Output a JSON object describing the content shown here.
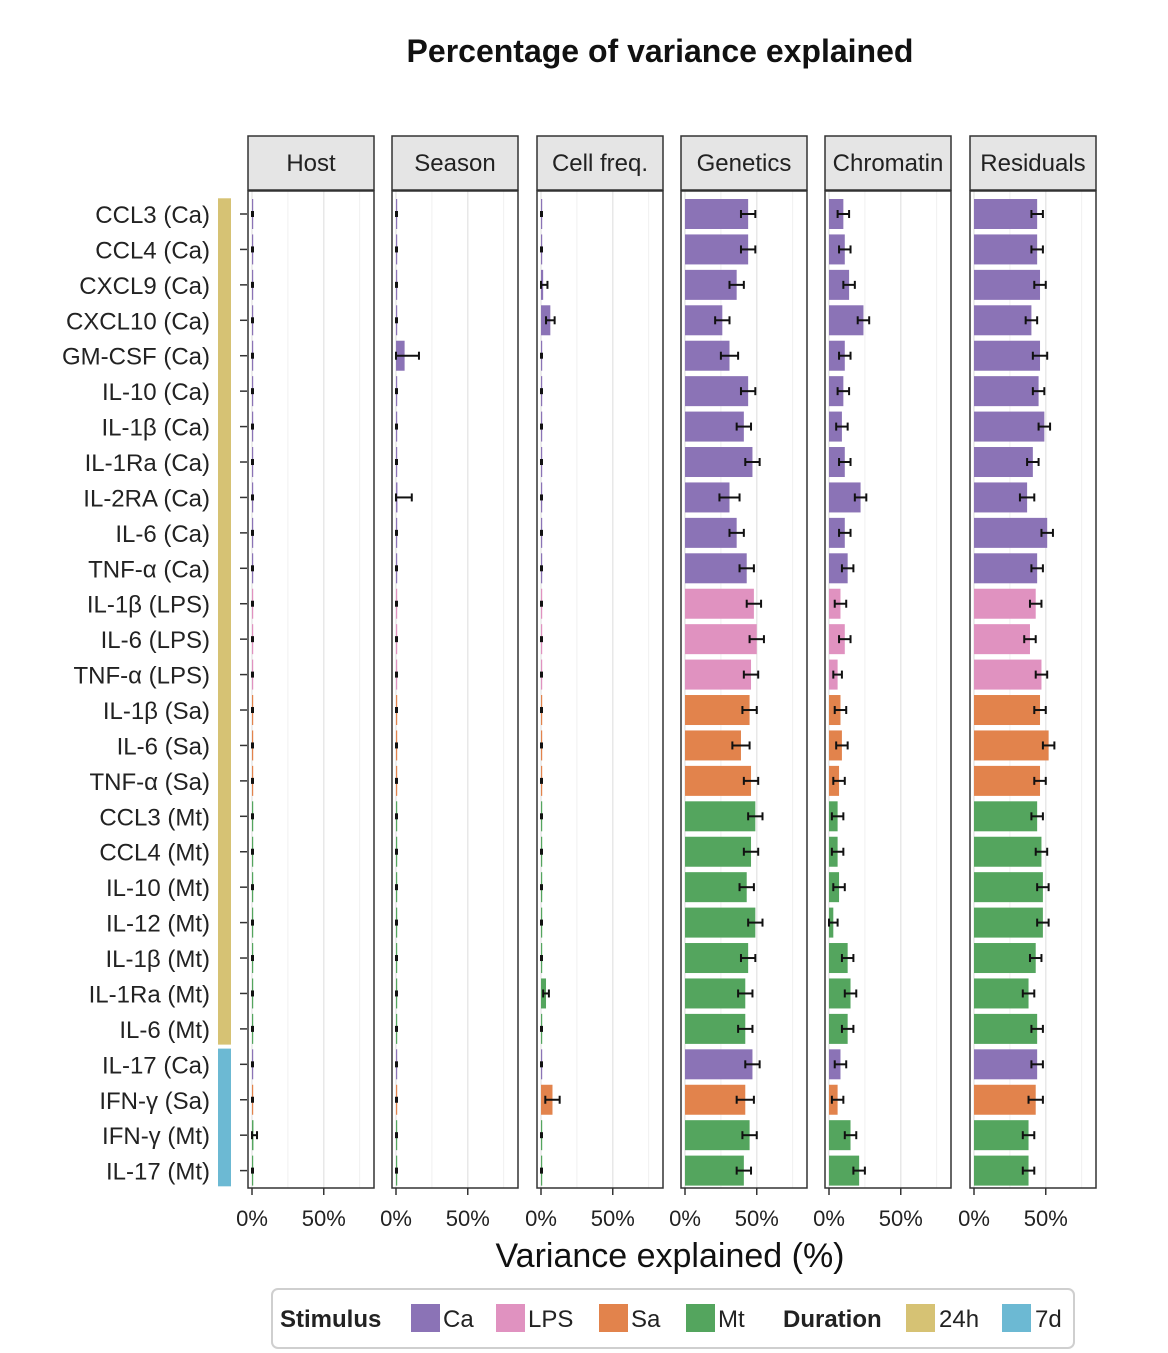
{
  "chart_data": {
    "type": "bar",
    "title": "Percentage of variance explained",
    "xlabel": "Variance explained (%)",
    "ylabel": "",
    "xlim": [
      0,
      85
    ],
    "x_ticks": [
      0,
      50
    ],
    "x_tick_labels": [
      "0%",
      "50%"
    ],
    "panels": [
      "Host",
      "Season",
      "Cell freq.",
      "Genetics",
      "Chromatin",
      "Residuals"
    ],
    "categories": [
      "CCL3 (Ca)",
      "CCL4 (Ca)",
      "CXCL9 (Ca)",
      "CXCL10 (Ca)",
      "GM-CSF (Ca)",
      "IL-10 (Ca)",
      "IL-1β (Ca)",
      "IL-1Ra (Ca)",
      "IL-2RA (Ca)",
      "IL-6 (Ca)",
      "TNF-α (Ca)",
      "IL-1β (LPS)",
      "IL-6 (LPS)",
      "TNF-α (LPS)",
      "IL-1β (Sa)",
      "IL-6 (Sa)",
      "TNF-α (Sa)",
      "CCL3 (Mt)",
      "CCL4 (Mt)",
      "IL-10 (Mt)",
      "IL-12 (Mt)",
      "IL-1β (Mt)",
      "IL-1Ra (Mt)",
      "IL-6 (Mt)",
      "IL-17 (Ca)",
      "IFN-γ (Sa)",
      "IFN-γ (Mt)",
      "IL-17 (Mt)"
    ],
    "stimulus": [
      "Ca",
      "Ca",
      "Ca",
      "Ca",
      "Ca",
      "Ca",
      "Ca",
      "Ca",
      "Ca",
      "Ca",
      "Ca",
      "LPS",
      "LPS",
      "LPS",
      "Sa",
      "Sa",
      "Sa",
      "Mt",
      "Mt",
      "Mt",
      "Mt",
      "Mt",
      "Mt",
      "Mt",
      "Ca",
      "Sa",
      "Mt",
      "Mt"
    ],
    "duration": [
      "24h",
      "24h",
      "24h",
      "24h",
      "24h",
      "24h",
      "24h",
      "24h",
      "24h",
      "24h",
      "24h",
      "24h",
      "24h",
      "24h",
      "24h",
      "24h",
      "24h",
      "24h",
      "24h",
      "24h",
      "24h",
      "24h",
      "24h",
      "24h",
      "7d",
      "7d",
      "7d",
      "7d"
    ],
    "series": [
      {
        "name": "Host",
        "values": [
          0.3,
          0.3,
          0.3,
          0.3,
          0.3,
          0.3,
          0.3,
          0.3,
          0.8,
          0.3,
          0.3,
          0.3,
          0.3,
          0.3,
          0.3,
          0.3,
          0.3,
          0.3,
          0.3,
          0.3,
          0.3,
          0.3,
          0.3,
          0.3,
          0.3,
          0.3,
          1.0,
          0.3
        ],
        "errors": [
          0.4,
          0.4,
          0.4,
          0.4,
          0.4,
          0.4,
          0.4,
          0.4,
          1.0,
          0.4,
          0.4,
          0.4,
          0.4,
          0.4,
          0.4,
          0.4,
          0.4,
          0.4,
          0.4,
          0.4,
          0.4,
          0.4,
          0.4,
          0.4,
          0.4,
          0.4,
          2.5,
          0.4
        ]
      },
      {
        "name": "Season",
        "values": [
          0.3,
          0.3,
          0.3,
          0.3,
          6.0,
          0.3,
          0.3,
          0.3,
          1.0,
          0.3,
          0.3,
          0.3,
          0.3,
          0.3,
          0.3,
          0.3,
          0.3,
          0.3,
          0.3,
          0.3,
          0.3,
          0.3,
          0.3,
          0.3,
          0.3,
          0.3,
          0.3,
          0.3
        ],
        "errors": [
          0.4,
          0.4,
          0.4,
          0.4,
          10.0,
          0.4,
          0.4,
          0.4,
          10.0,
          0.4,
          0.4,
          0.4,
          0.4,
          0.4,
          0.4,
          0.4,
          0.4,
          0.4,
          0.4,
          0.4,
          0.4,
          0.4,
          0.4,
          0.4,
          0.4,
          0.4,
          0.4,
          0.4
        ]
      },
      {
        "name": "Cell freq.",
        "values": [
          0.3,
          0.3,
          1.5,
          6.5,
          0.3,
          0.3,
          0.3,
          0.3,
          0.3,
          0.3,
          0.3,
          0.3,
          0.3,
          0.3,
          0.3,
          0.3,
          0.3,
          0.3,
          0.3,
          0.3,
          0.3,
          0.3,
          3.5,
          0.3,
          0.3,
          8.0,
          0.3,
          0.3
        ],
        "errors": [
          0.4,
          0.4,
          3.0,
          3.0,
          0.4,
          0.4,
          0.4,
          0.4,
          0.4,
          0.4,
          0.4,
          0.4,
          0.4,
          0.4,
          0.4,
          0.4,
          0.4,
          0.4,
          0.4,
          0.4,
          0.4,
          0.4,
          2.0,
          0.4,
          0.4,
          5.0,
          0.4,
          0.4
        ]
      },
      {
        "name": "Genetics",
        "values": [
          44,
          44,
          36,
          26,
          31,
          44,
          41,
          47,
          31,
          36,
          43,
          48,
          50,
          46,
          45,
          39,
          46,
          49,
          46,
          43,
          49,
          44,
          42,
          42,
          47,
          42,
          45,
          41
        ],
        "errors": [
          5,
          5,
          5,
          5,
          6,
          5,
          5,
          5,
          7,
          5,
          5,
          5,
          5,
          5,
          5,
          6,
          5,
          5,
          5,
          5,
          5,
          5,
          5,
          5,
          5,
          6,
          5,
          5
        ]
      },
      {
        "name": "Chromatin",
        "values": [
          10,
          11,
          14,
          24,
          11,
          10,
          9,
          11,
          22,
          11,
          13,
          8,
          11,
          6,
          8,
          9,
          7,
          6,
          6,
          7,
          3,
          13,
          15,
          13,
          8,
          6,
          15,
          21
        ],
        "errors": [
          4,
          4,
          4,
          4,
          4,
          4,
          4,
          4,
          4,
          4,
          4,
          4,
          4,
          3,
          4,
          4,
          4,
          4,
          4,
          4,
          3,
          4,
          4,
          4,
          4,
          4,
          4,
          4
        ]
      },
      {
        "name": "Residuals",
        "values": [
          44,
          44,
          46,
          40,
          46,
          45,
          49,
          41,
          37,
          51,
          44,
          43,
          39,
          47,
          46,
          52,
          46,
          44,
          47,
          48,
          48,
          43,
          38,
          44,
          44,
          43,
          38,
          38
        ],
        "errors": [
          4,
          4,
          4,
          4,
          5,
          4,
          4,
          4,
          5,
          4,
          4,
          4,
          4,
          4,
          4,
          4,
          4,
          4,
          4,
          4,
          4,
          4,
          4,
          4,
          4,
          5,
          4,
          4
        ]
      }
    ]
  },
  "legend": {
    "stimulus_title": "Stimulus",
    "stimulus_items": [
      {
        "label": "Ca",
        "color": "#8b73b6"
      },
      {
        "label": "LPS",
        "color": "#e092c0"
      },
      {
        "label": "Sa",
        "color": "#e2834c"
      },
      {
        "label": "Mt",
        "color": "#54a55e"
      }
    ],
    "duration_title": "Duration",
    "duration_items": [
      {
        "label": "24h",
        "color": "#d6c274"
      },
      {
        "label": "7d",
        "color": "#6cb9d3"
      }
    ]
  }
}
